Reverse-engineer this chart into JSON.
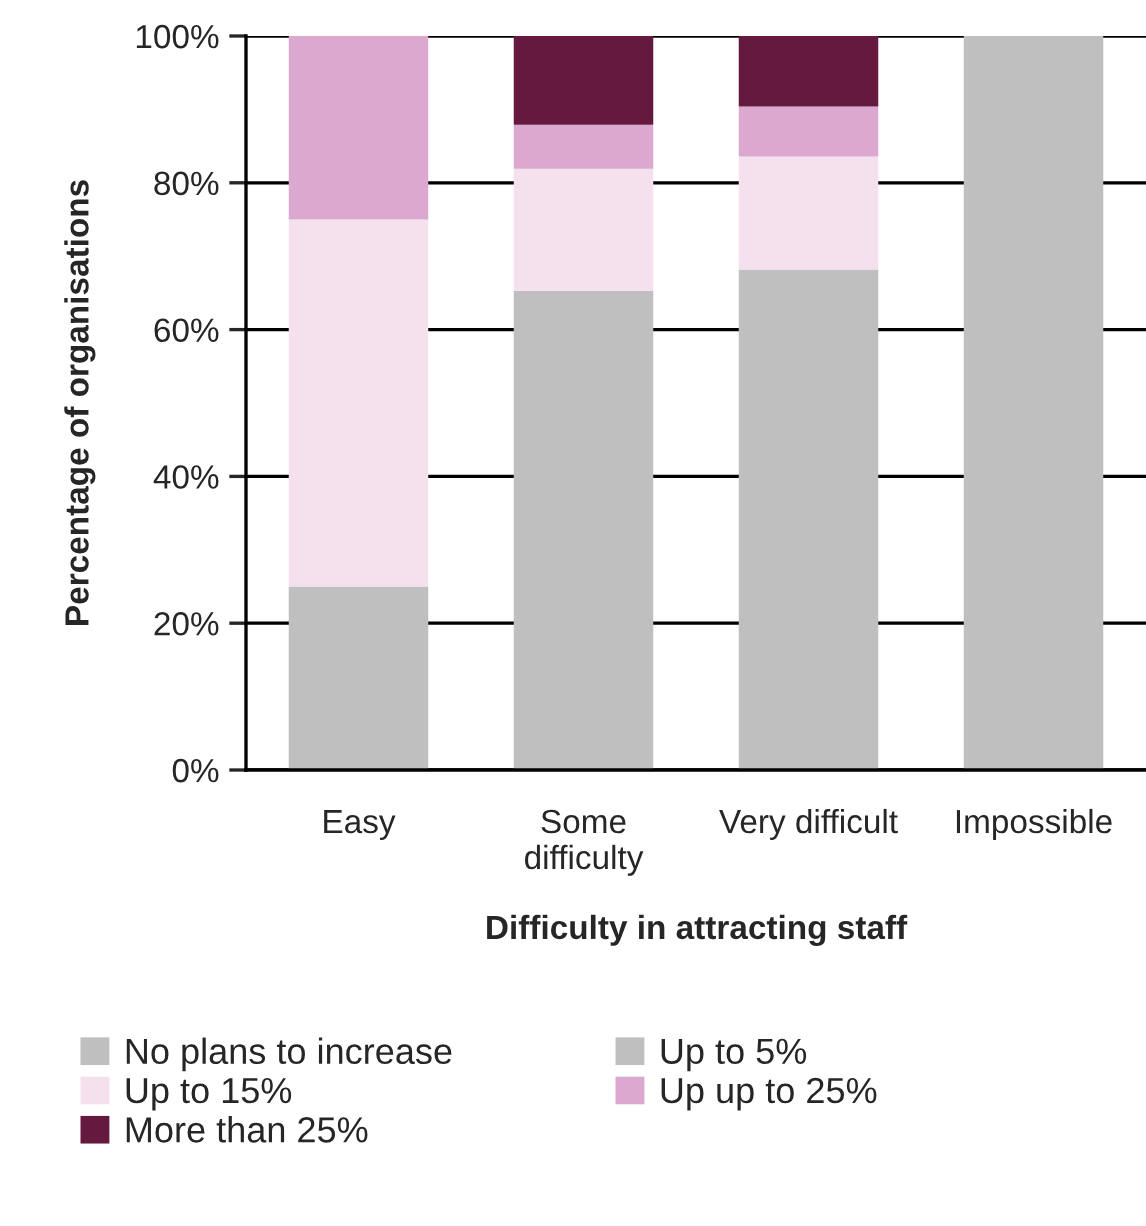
{
  "chart_data": {
    "type": "bar",
    "stacked": true,
    "xlabel": "Difficulty in attracting staff",
    "ylabel": "Percentage of organisations",
    "categories": [
      "Easy",
      "Some\ndifficulty",
      "Very difficult",
      "Impossible"
    ],
    "series": [
      {
        "name": "No plans to increase",
        "color": "#bfbfbf",
        "values": [
          25,
          65.3,
          68.2,
          100
        ]
      },
      {
        "name": "Up to 5%",
        "color": "#bfbfbf",
        "values": [
          null,
          null,
          null,
          null
        ]
      },
      {
        "name": "Up to 15%",
        "color": "#f5e1ee",
        "values": [
          50,
          16.6,
          15.4,
          0
        ]
      },
      {
        "name": "Up up to 25%",
        "color": "#dba9cf",
        "values": [
          25,
          6,
          6.8,
          0
        ]
      },
      {
        "name": "More than 25%",
        "color": "#66193f",
        "values": [
          0,
          12.1,
          9.6,
          0
        ]
      }
    ],
    "ylim": [
      0,
      100
    ],
    "yticks": [
      {
        "value": 0,
        "label": "0%"
      },
      {
        "value": 20,
        "label": "20%"
      },
      {
        "value": 40,
        "label": "40%"
      },
      {
        "value": 60,
        "label": "60%"
      },
      {
        "value": 80,
        "label": "80%"
      },
      {
        "value": 100,
        "label": "100%"
      }
    ],
    "grid": "y",
    "legend": "bottom"
  }
}
